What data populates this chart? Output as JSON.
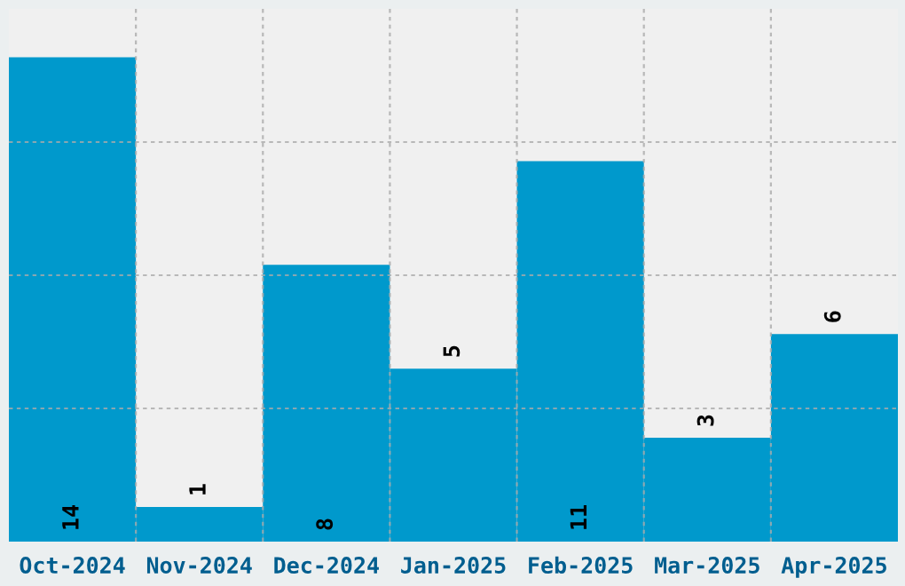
{
  "chart_data": {
    "type": "bar",
    "categories": [
      "Oct-2024",
      "Nov-2024",
      "Dec-2024",
      "Jan-2025",
      "Feb-2025",
      "Mar-2025",
      "Apr-2025"
    ],
    "values": [
      14,
      1,
      8,
      5,
      11,
      3,
      6
    ],
    "color": "#0099cc",
    "data_labels": true,
    "ylim": [
      0,
      15.4
    ],
    "yticks": [
      {
        "value": 3.85,
        "label": null
      },
      {
        "value": 7.7,
        "label": null
      },
      {
        "value": 11.55,
        "label": null
      }
    ],
    "tick_labels": "x",
    "grid": true
  }
}
